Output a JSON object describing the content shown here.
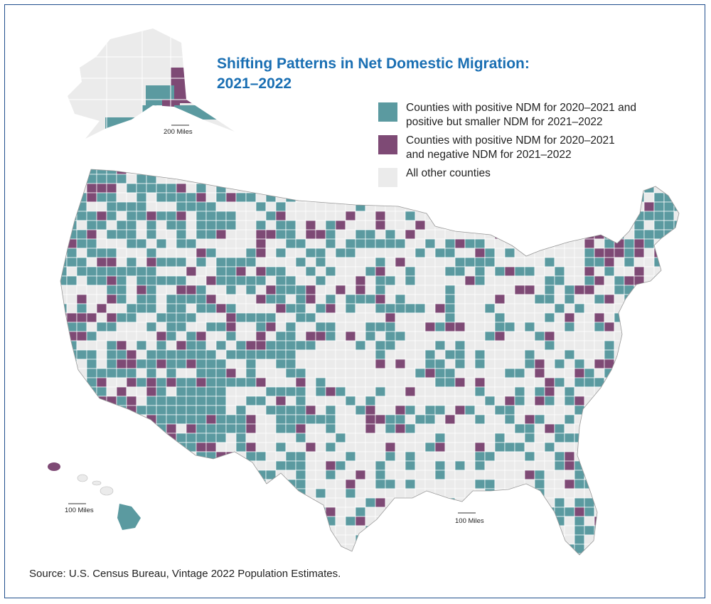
{
  "title": {
    "line1": "Shifting Patterns in Net Domestic Migration:",
    "line2": "2021–2022"
  },
  "legend": [
    {
      "label": "Counties with positive NDM for 2020–2021 and\npositive but smaller NDM for 2021–2022",
      "color": "#5b9aa0"
    },
    {
      "label": "Counties with positive NDM for 2020–2021\nand negative NDM for 2021–2022",
      "color": "#7e4a75"
    },
    {
      "label": "All other counties",
      "color": "#ebebeb"
    }
  ],
  "scale_bars": {
    "alaska": "200 Miles",
    "hawaii": "100 Miles",
    "mainland": "100 Miles"
  },
  "source": "Source: U.S. Census Bureau, Vintage 2022 Population Estimates.",
  "colors": {
    "teal": "#5b9aa0",
    "purple": "#7e4a75",
    "gray": "#ebebeb",
    "border": "#ffffff",
    "title": "#1a6fb3"
  }
}
